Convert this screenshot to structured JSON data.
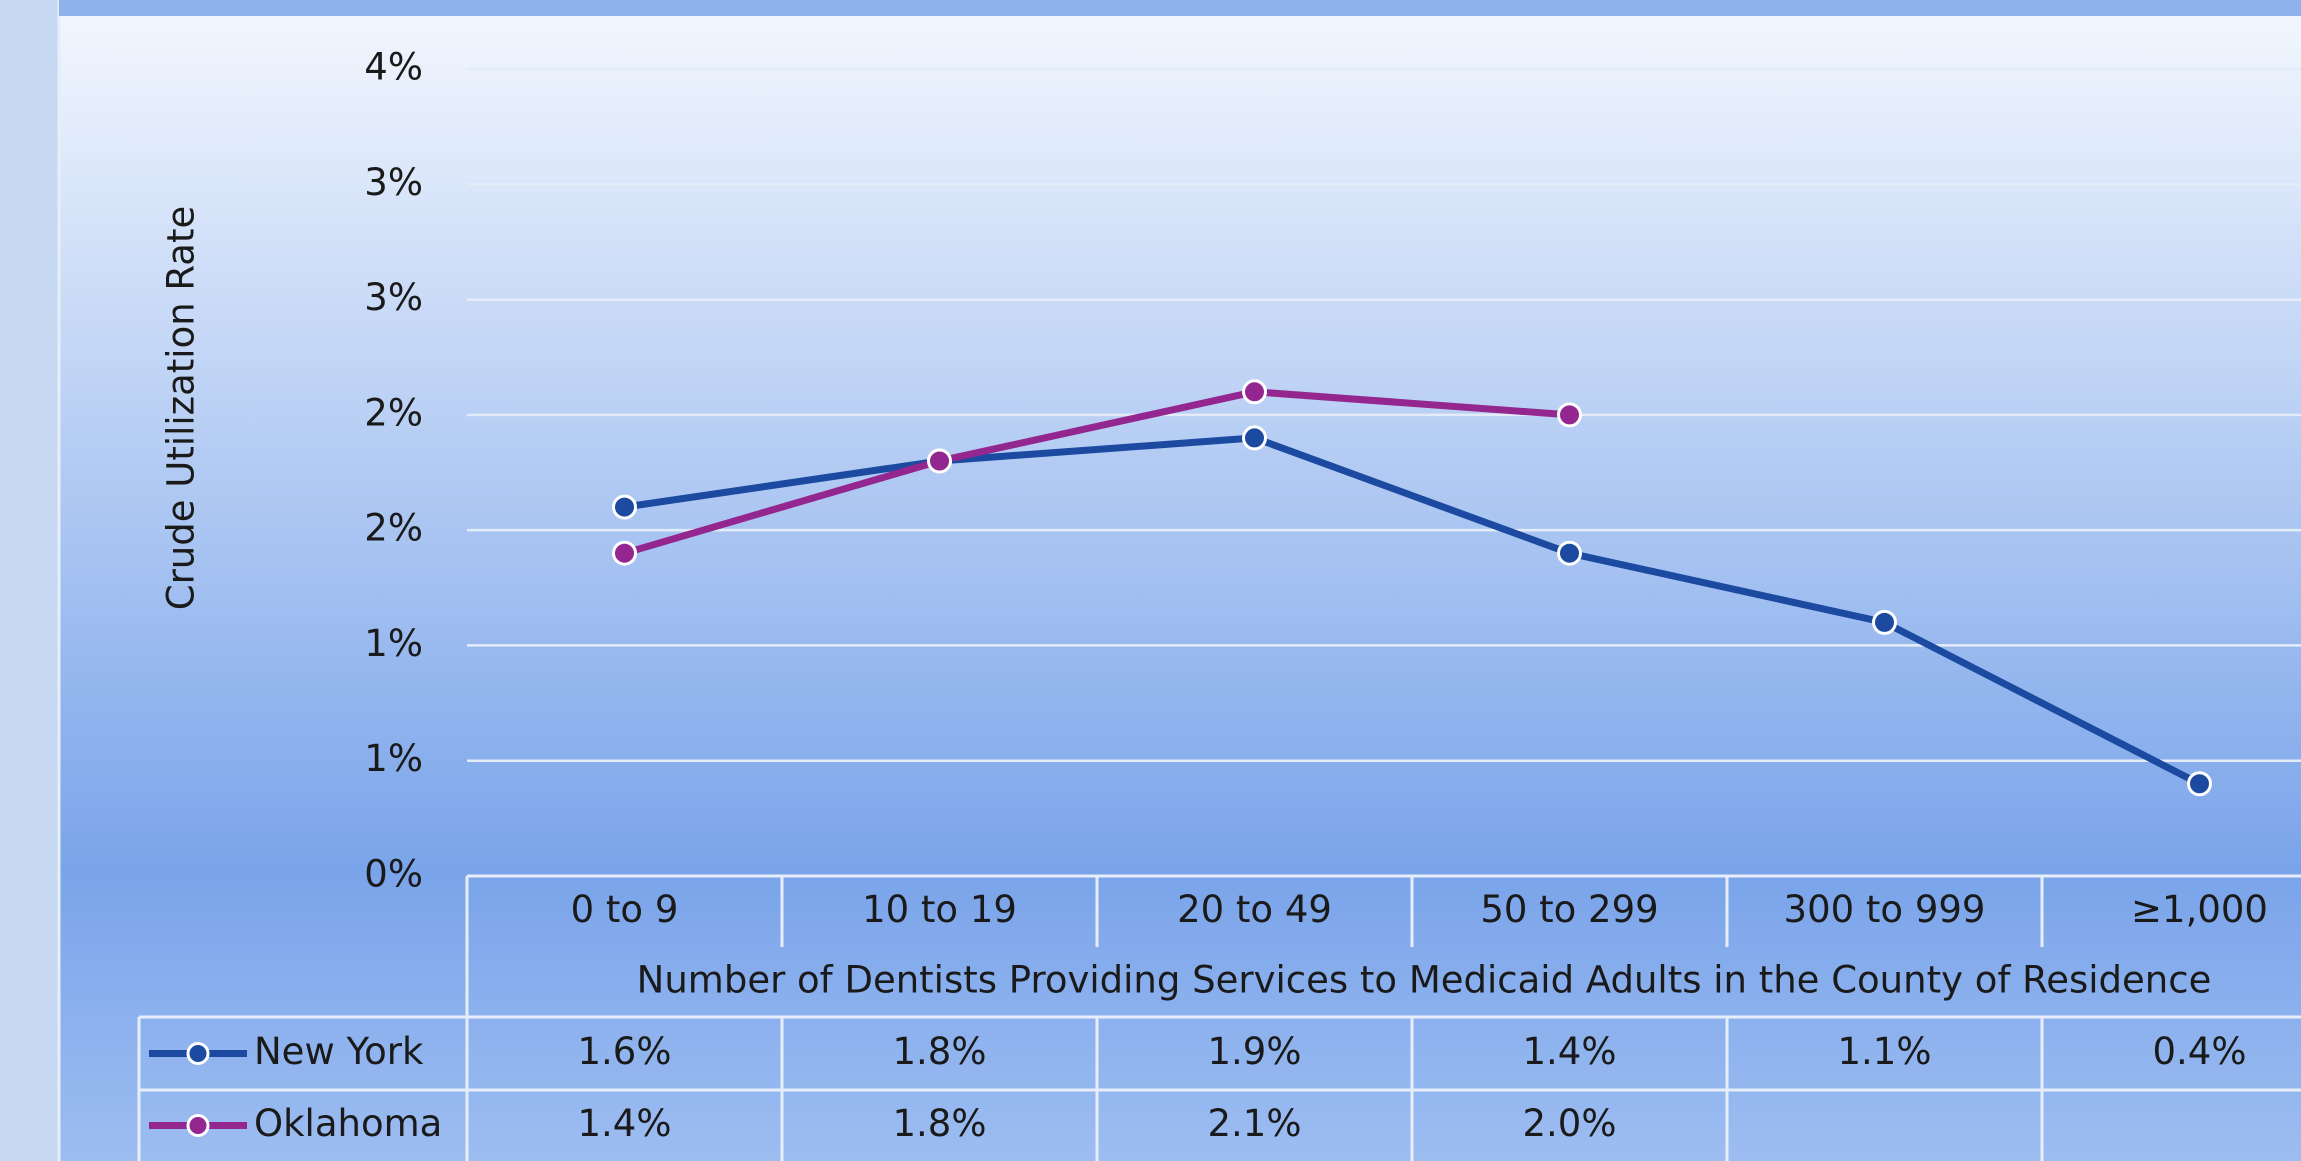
{
  "chart_data": {
    "type": "line",
    "y_label": "Crude Utilization Rate",
    "x_label": "Number of Dentists Providing Services to Medicaid Adults in the County of Residence",
    "categories": [
      "0 to 9",
      "10 to 19",
      "20 to 49",
      "50 to 299",
      "300 to 999",
      "≥1,000"
    ],
    "series": [
      {
        "name": "New York",
        "color": "#1b4aa0",
        "values": [
          1.6,
          1.8,
          1.9,
          1.4,
          1.1,
          0.4
        ],
        "value_labels": [
          "1.6%",
          "1.8%",
          "1.9%",
          "1.4%",
          "1.1%",
          "0.4%"
        ]
      },
      {
        "name": "Oklahoma",
        "color": "#93278f",
        "values": [
          1.4,
          1.8,
          2.1,
          2.0,
          null,
          null
        ],
        "value_labels": [
          "1.4%",
          "1.8%",
          "2.1%",
          "2.0%",
          null,
          null
        ]
      }
    ],
    "ylim": [
      0,
      3.5
    ],
    "yticks": [
      {
        "value": 0,
        "label": "0%"
      },
      {
        "value": 0.5,
        "label": "1%"
      },
      {
        "value": 1,
        "label": "1%"
      },
      {
        "value": 1.5,
        "label": "2%"
      },
      {
        "value": 2,
        "label": "2%"
      },
      {
        "value": 2.5,
        "label": "3%"
      },
      {
        "value": 3,
        "label": "3%"
      },
      {
        "value": 3.5,
        "label": "4%"
      }
    ],
    "grid": true
  }
}
